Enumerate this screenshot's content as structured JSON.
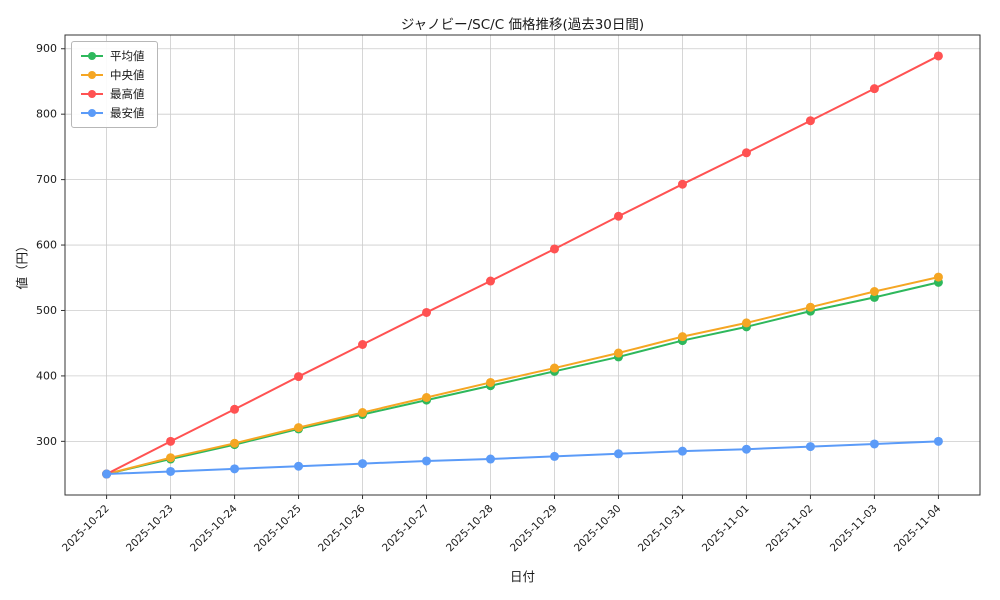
{
  "chart_data": {
    "type": "line",
    "title": "ジャノビー/SC/C 価格推移(過去30日間)",
    "xlabel": "日付",
    "ylabel": "値（円）",
    "x": [
      "2025-10-22",
      "2025-10-23",
      "2025-10-24",
      "2025-10-25",
      "2025-10-26",
      "2025-10-27",
      "2025-10-28",
      "2025-10-29",
      "2025-10-30",
      "2025-10-31",
      "2025-11-01",
      "2025-11-02",
      "2025-11-03",
      "2025-11-04"
    ],
    "series": [
      {
        "name": "平均値",
        "color": "#2eb85c",
        "values": [
          250,
          273,
          295,
          319,
          341,
          363,
          385,
          407,
          429,
          454,
          475,
          499,
          520,
          543
        ]
      },
      {
        "name": "中央値",
        "color": "#f5a623",
        "values": [
          250,
          275,
          297,
          321,
          344,
          367,
          390,
          412,
          435,
          460,
          481,
          505,
          529,
          551
        ]
      },
      {
        "name": "最高値",
        "color": "#ff5252",
        "values": [
          250,
          300,
          349,
          399,
          448,
          497,
          545,
          594,
          644,
          693,
          741,
          790,
          839,
          889
        ]
      },
      {
        "name": "最安値",
        "color": "#5b9bf8",
        "values": [
          250,
          254,
          258,
          262,
          266,
          270,
          273,
          277,
          281,
          285,
          288,
          292,
          296,
          300
        ]
      }
    ],
    "yticks": [
      300,
      400,
      500,
      600,
      700,
      800,
      900
    ],
    "ylim": [
      218,
      921
    ],
    "grid": true,
    "legend_position": "top-left",
    "colors": {
      "grid": "#cccccc",
      "axis": "#333333",
      "text": "#1a1a1a",
      "background": "#ffffff"
    }
  }
}
